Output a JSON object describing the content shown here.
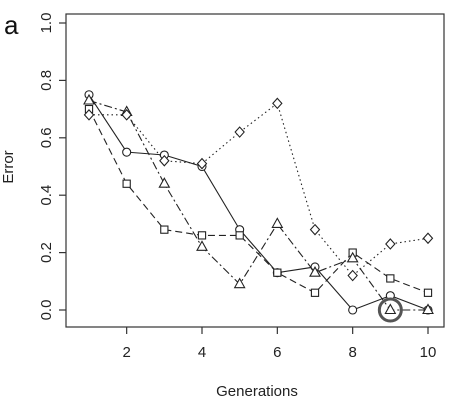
{
  "chart_data": {
    "type": "line",
    "panel_label": "a",
    "title": "",
    "xlabel": "Generations",
    "ylabel": "Error",
    "xlim": [
      1,
      10
    ],
    "ylim": [
      0,
      1
    ],
    "x_ticks": [
      2,
      4,
      6,
      8,
      10
    ],
    "x_tick_labels": [
      "2",
      "4",
      "6",
      "8",
      "10"
    ],
    "y_ticks": [
      0.0,
      0.2,
      0.4,
      0.6,
      0.8,
      1.0
    ],
    "y_tick_labels": [
      "0.0",
      "0.2",
      "0.4",
      "0.6",
      "0.8",
      "1.0"
    ],
    "grid": false,
    "legend": "none",
    "x": [
      1,
      2,
      3,
      4,
      5,
      6,
      7,
      8,
      9,
      10
    ],
    "series": [
      {
        "marker": "circle",
        "line_style": "solid",
        "color": "#222222",
        "values": [
          0.75,
          0.55,
          0.54,
          0.5,
          0.28,
          0.13,
          0.15,
          0.0,
          0.05,
          0.0
        ]
      },
      {
        "marker": "square",
        "line_style": "dashed",
        "color": "#222222",
        "values": [
          0.7,
          0.44,
          0.28,
          0.26,
          0.26,
          0.13,
          0.06,
          0.2,
          0.11,
          0.06
        ]
      },
      {
        "marker": "triangle",
        "line_style": "dashdot",
        "color": "#222222",
        "values": [
          0.73,
          0.69,
          0.44,
          0.22,
          0.09,
          0.3,
          0.13,
          0.18,
          0.0,
          0.0
        ]
      },
      {
        "marker": "diamond",
        "line_style": "dotted",
        "color": "#222222",
        "values": [
          0.68,
          0.68,
          0.52,
          0.51,
          0.62,
          0.72,
          0.28,
          0.12,
          0.23,
          0.25
        ]
      }
    ],
    "highlight": {
      "x": 9,
      "y": 0.0,
      "color": "#555555"
    }
  }
}
